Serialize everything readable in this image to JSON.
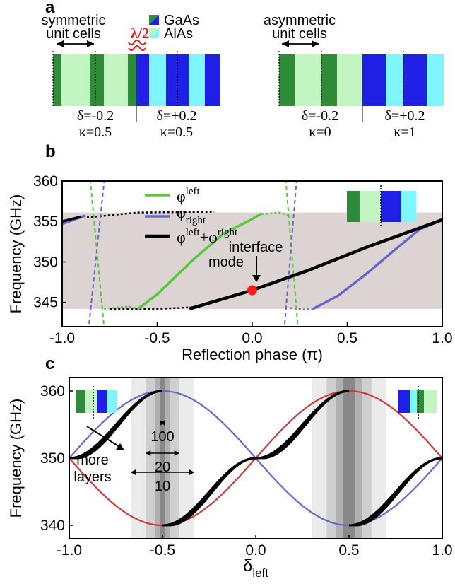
{
  "panel_a": {
    "letter": "a",
    "legend": [
      {
        "label": "GaAs",
        "color": "#1f1fe6",
        "color2": "#2e8b3a"
      },
      {
        "label": "AlAs",
        "color": "#7ff5ff",
        "color2": "#c2f5c2"
      }
    ],
    "left": {
      "title_line1": "symmetric",
      "title_line2": "unit cells",
      "half_wave": "λ/2",
      "params_left": [
        "δ=-0.2",
        "κ=0.5"
      ],
      "params_right": [
        "δ=+0.2",
        "κ=0.5"
      ]
    },
    "right": {
      "title_line1": "asymmetric",
      "title_line2": "unit cells",
      "params_left": [
        "δ=-0.2",
        "κ=0"
      ],
      "params_right": [
        "δ=+0.2",
        "κ=1"
      ]
    }
  },
  "chart_data": [
    {
      "panel": "b",
      "type": "line",
      "xlabel": "Reflection phase (π)",
      "ylabel": "Frequency (GHz)",
      "xlim": [
        -1.0,
        1.0
      ],
      "ylim": [
        342,
        360
      ],
      "x_ticks": [
        "-1.0",
        "-0.5",
        "0.0",
        "0.5",
        "1.0"
      ],
      "y_ticks": [
        "345",
        "350",
        "355",
        "360"
      ],
      "band_gap": [
        344.2,
        356.1
      ],
      "series": [
        {
          "name": "φ_left",
          "color": "#55c83c",
          "points": [
            [
              -0.6,
              344.2
            ],
            [
              -0.5,
              346
            ],
            [
              -0.3,
              350.5
            ],
            [
              -0.15,
              353.5
            ],
            [
              0.0,
              355.3
            ],
            [
              0.05,
              356
            ]
          ]
        },
        {
          "name": "φ_right",
          "color": "#6666cc",
          "points": [
            [
              0.32,
              344.2
            ],
            [
              0.45,
              345.8
            ],
            [
              0.6,
              348.5
            ],
            [
              0.75,
              351.5
            ],
            [
              0.88,
              354
            ],
            [
              1.0,
              355.2
            ]
          ]
        },
        {
          "name": "φ_left+φ_right",
          "color": "#000000",
          "points": [
            [
              -0.33,
              344.2
            ],
            [
              0.0,
              346.5
            ],
            [
              0.3,
              349
            ],
            [
              0.6,
              351.8
            ],
            [
              0.8,
              353.5
            ],
            [
              1.0,
              355.2
            ]
          ]
        }
      ],
      "legend": [
        {
          "symbol": "φ",
          "sup": "left",
          "sub": "",
          "sym2": "",
          "sup2": "",
          "color": "#55c83c"
        },
        {
          "symbol": "φ",
          "sup": "",
          "sub": "right",
          "sym2": "",
          "sup2": "",
          "color": "#6666cc"
        },
        {
          "symbol": "φ",
          "sup": "left",
          "sub": "",
          "sym2": "+φ",
          "sup2": "right",
          "color": "#000000"
        }
      ],
      "annotation": {
        "line1": "interface",
        "line2": "mode",
        "x": 0.0,
        "y": 346.5
      }
    },
    {
      "panel": "c",
      "type": "line",
      "xlabel_symbol": "δ",
      "xlabel_sub": "left",
      "ylabel": "Frequency (GHz)",
      "xlim": [
        -1.0,
        1.0
      ],
      "ylim": [
        338,
        362
      ],
      "x_ticks": [
        "-1.0",
        "-0.5",
        "0.0",
        "0.5",
        "1.0"
      ],
      "y_ticks": [
        "340",
        "350",
        "360"
      ],
      "series": [
        {
          "name": "red",
          "color": "#cc3a3a"
        },
        {
          "name": "blue",
          "color": "#6666cc"
        }
      ],
      "gray_bands": [
        {
          "center": -0.5,
          "half_width": 0.17,
          "shade": "#ebebeb"
        },
        {
          "center": -0.5,
          "half_width": 0.09,
          "shade": "#cfcfcf"
        },
        {
          "center": -0.5,
          "half_width": 0.04,
          "shade": "#b0b0b0"
        },
        {
          "center": -0.5,
          "half_width": 0.012,
          "shade": "#888888"
        },
        {
          "center": 0.5,
          "half_width": 0.2,
          "shade": "#ebebeb"
        },
        {
          "center": 0.5,
          "half_width": 0.12,
          "shade": "#cfcfcf"
        },
        {
          "center": 0.5,
          "half_width": 0.07,
          "shade": "#b0b0b0"
        },
        {
          "center": 0.5,
          "half_width": 0.03,
          "shade": "#888888"
        }
      ],
      "widths": [
        {
          "label": "100",
          "half_width": 0.012
        },
        {
          "label": "20",
          "half_width": 0.09
        },
        {
          "label": "10",
          "half_width": 0.17
        }
      ],
      "note": [
        "more",
        "layers"
      ]
    }
  ]
}
